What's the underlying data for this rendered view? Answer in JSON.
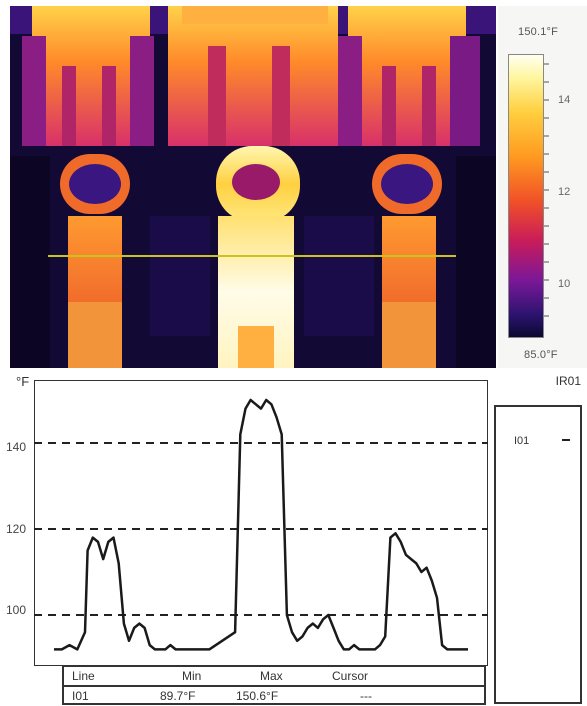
{
  "thermal_image": {
    "scale_max": "150.1°F",
    "scale_min": "85.0°F",
    "colorbar_labels": [
      "14",
      "12",
      "10"
    ],
    "palette": "iron"
  },
  "profile_graph": {
    "unit": "°F",
    "id_label": "IR01"
  },
  "legend": {
    "entry_label": "I01"
  },
  "table": {
    "headers": [
      "Line",
      "Min",
      "Max",
      "Cursor"
    ],
    "row": [
      "I01",
      "89.7°F",
      "150.6°F",
      "---"
    ]
  },
  "chart_data": {
    "type": "line",
    "title": "",
    "xlabel": "",
    "ylabel": "°F",
    "ylim": [
      90,
      150
    ],
    "y_ticks": [
      "100",
      "120",
      "140"
    ],
    "grid": "dashed horizontal",
    "legend": "right",
    "series": [
      {
        "name": "I01",
        "x": [
          0,
          3,
          6,
          9,
          12,
          13,
          15,
          17,
          19,
          21,
          23,
          25,
          27,
          29,
          31,
          33,
          35,
          37,
          39,
          41,
          43,
          45,
          47,
          50,
          55,
          60,
          65,
          70,
          72,
          74,
          76,
          78,
          80,
          82,
          84,
          86,
          88,
          90,
          92,
          94,
          96,
          98,
          100,
          102,
          104,
          106,
          108,
          110,
          112,
          114,
          116,
          118,
          120,
          122,
          124,
          126,
          128,
          130,
          132,
          134,
          136,
          138,
          140,
          142,
          144,
          146,
          148,
          150,
          152,
          154,
          156,
          158,
          160
        ],
        "values": [
          92,
          92,
          93,
          92,
          96,
          115,
          118,
          117,
          113,
          117,
          118,
          112,
          98,
          94,
          97,
          98,
          97,
          93,
          92,
          92,
          92,
          93,
          92,
          92,
          92,
          92,
          94,
          96,
          142,
          148,
          150,
          149,
          148,
          150,
          149,
          146,
          142,
          100,
          96,
          94,
          95,
          97,
          98,
          97,
          99,
          100,
          97,
          94,
          92,
          92,
          93,
          92,
          92,
          92,
          92,
          93,
          95,
          118,
          119,
          117,
          114,
          113,
          112,
          110,
          111,
          108,
          104,
          93,
          92,
          92,
          92,
          92,
          92
        ]
      }
    ]
  }
}
